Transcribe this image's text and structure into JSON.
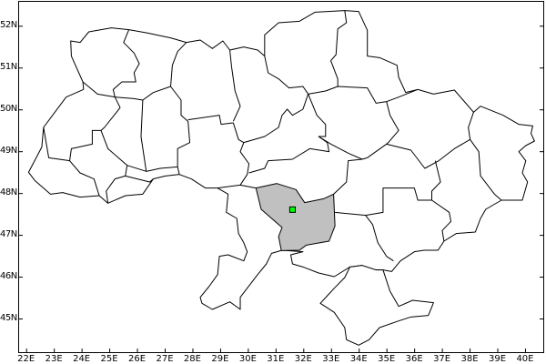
{
  "map": {
    "region_highlight_color": "#c0c0c0",
    "marker_color": "#00ff00",
    "outline_color": "#000000",
    "x_ticks": [
      "22E",
      "23E",
      "24E",
      "25E",
      "26E",
      "27E",
      "28E",
      "29E",
      "30E",
      "31E",
      "32E",
      "33E",
      "34E",
      "35E",
      "36E",
      "37E",
      "38E",
      "39E",
      "40E"
    ],
    "y_ticks": [
      "52N",
      "51N",
      "50N",
      "49N",
      "48N",
      "47N",
      "46N",
      "45N"
    ]
  }
}
